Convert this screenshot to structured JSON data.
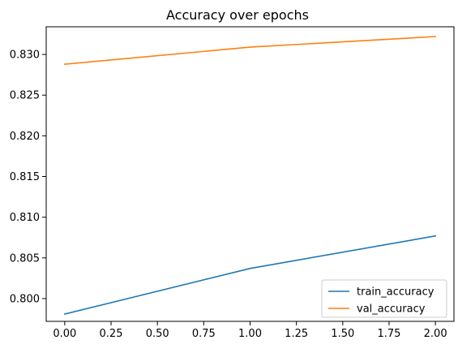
{
  "chart_data": {
    "type": "line",
    "title": "Accuracy over epochs",
    "xlabel": "",
    "ylabel": "",
    "x": [
      0,
      1,
      2
    ],
    "xlim": [
      -0.1,
      2.1
    ],
    "ylim": [
      0.7972,
      0.8334
    ],
    "xticks": [
      0.0,
      0.25,
      0.5,
      0.75,
      1.0,
      1.25,
      1.5,
      1.75,
      2.0
    ],
    "xtick_labels": [
      "0.00",
      "0.25",
      "0.50",
      "0.75",
      "1.00",
      "1.25",
      "1.50",
      "1.75",
      "2.00"
    ],
    "yticks": [
      0.8,
      0.805,
      0.81,
      0.815,
      0.82,
      0.825,
      0.83
    ],
    "ytick_labels": [
      "0.800",
      "0.805",
      "0.810",
      "0.815",
      "0.820",
      "0.825",
      "0.830"
    ],
    "grid": false,
    "legend_position": "lower-right",
    "series": [
      {
        "name": "train_accuracy",
        "color": "#1f77b4",
        "values": [
          0.7981,
          0.8037,
          0.8077
        ]
      },
      {
        "name": "val_accuracy",
        "color": "#ff7f0e",
        "values": [
          0.8288,
          0.8309,
          0.8322
        ]
      }
    ]
  }
}
